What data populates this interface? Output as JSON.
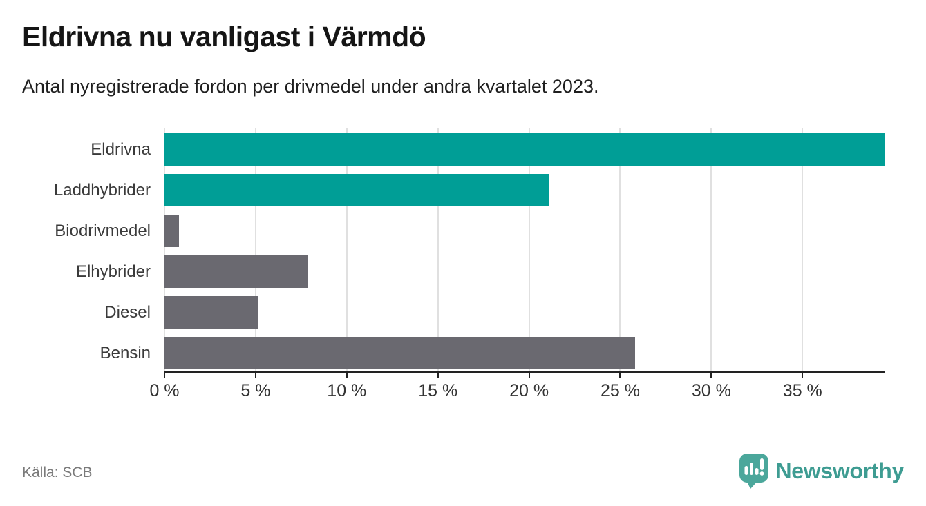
{
  "header": {
    "title": "Eldrivna nu vanligast i Värmdö",
    "subtitle": "Antal nyregistrerade fordon per drivmedel under andra kvartalet 2023."
  },
  "chart_data": {
    "type": "bar",
    "orientation": "horizontal",
    "title": "Eldrivna nu vanligast i Värmdö",
    "subtitle": "Antal nyregistrerade fordon per drivmedel under andra kvartalet 2023.",
    "categories": [
      "Eldrivna",
      "Laddhybrider",
      "Biodrivmedel",
      "Elhybrider",
      "Diesel",
      "Bensin"
    ],
    "values": [
      39.5,
      21.1,
      0.8,
      7.9,
      5.1,
      25.8
    ],
    "unit": "%",
    "bar_colors": [
      "#009e96",
      "#009e96",
      "#6a6970",
      "#6a6970",
      "#6a6970",
      "#6a6970"
    ],
    "x_tick_values": [
      0,
      5,
      10,
      15,
      20,
      25,
      30,
      35
    ],
    "x_tick_labels": [
      "0 %",
      "5 %",
      "10 %",
      "15 %",
      "20 %",
      "25 %",
      "30 %",
      "35 %"
    ],
    "xlim": [
      0,
      39.5
    ],
    "grid": "vertical",
    "legend": "none"
  },
  "footer": {
    "source": "Källa: SCB",
    "brand": "Newsworthy"
  },
  "colors": {
    "accent_teal": "#009e96",
    "neutral_gray": "#6a6970",
    "gridline": "#e0e0e0",
    "axis": "#222222",
    "brand_teal": "#3e9c92",
    "brand_icon_teal": "#4ba79b"
  },
  "icons": {
    "brand_icon": "newsworthy-speech-bubble-chart-icon"
  }
}
